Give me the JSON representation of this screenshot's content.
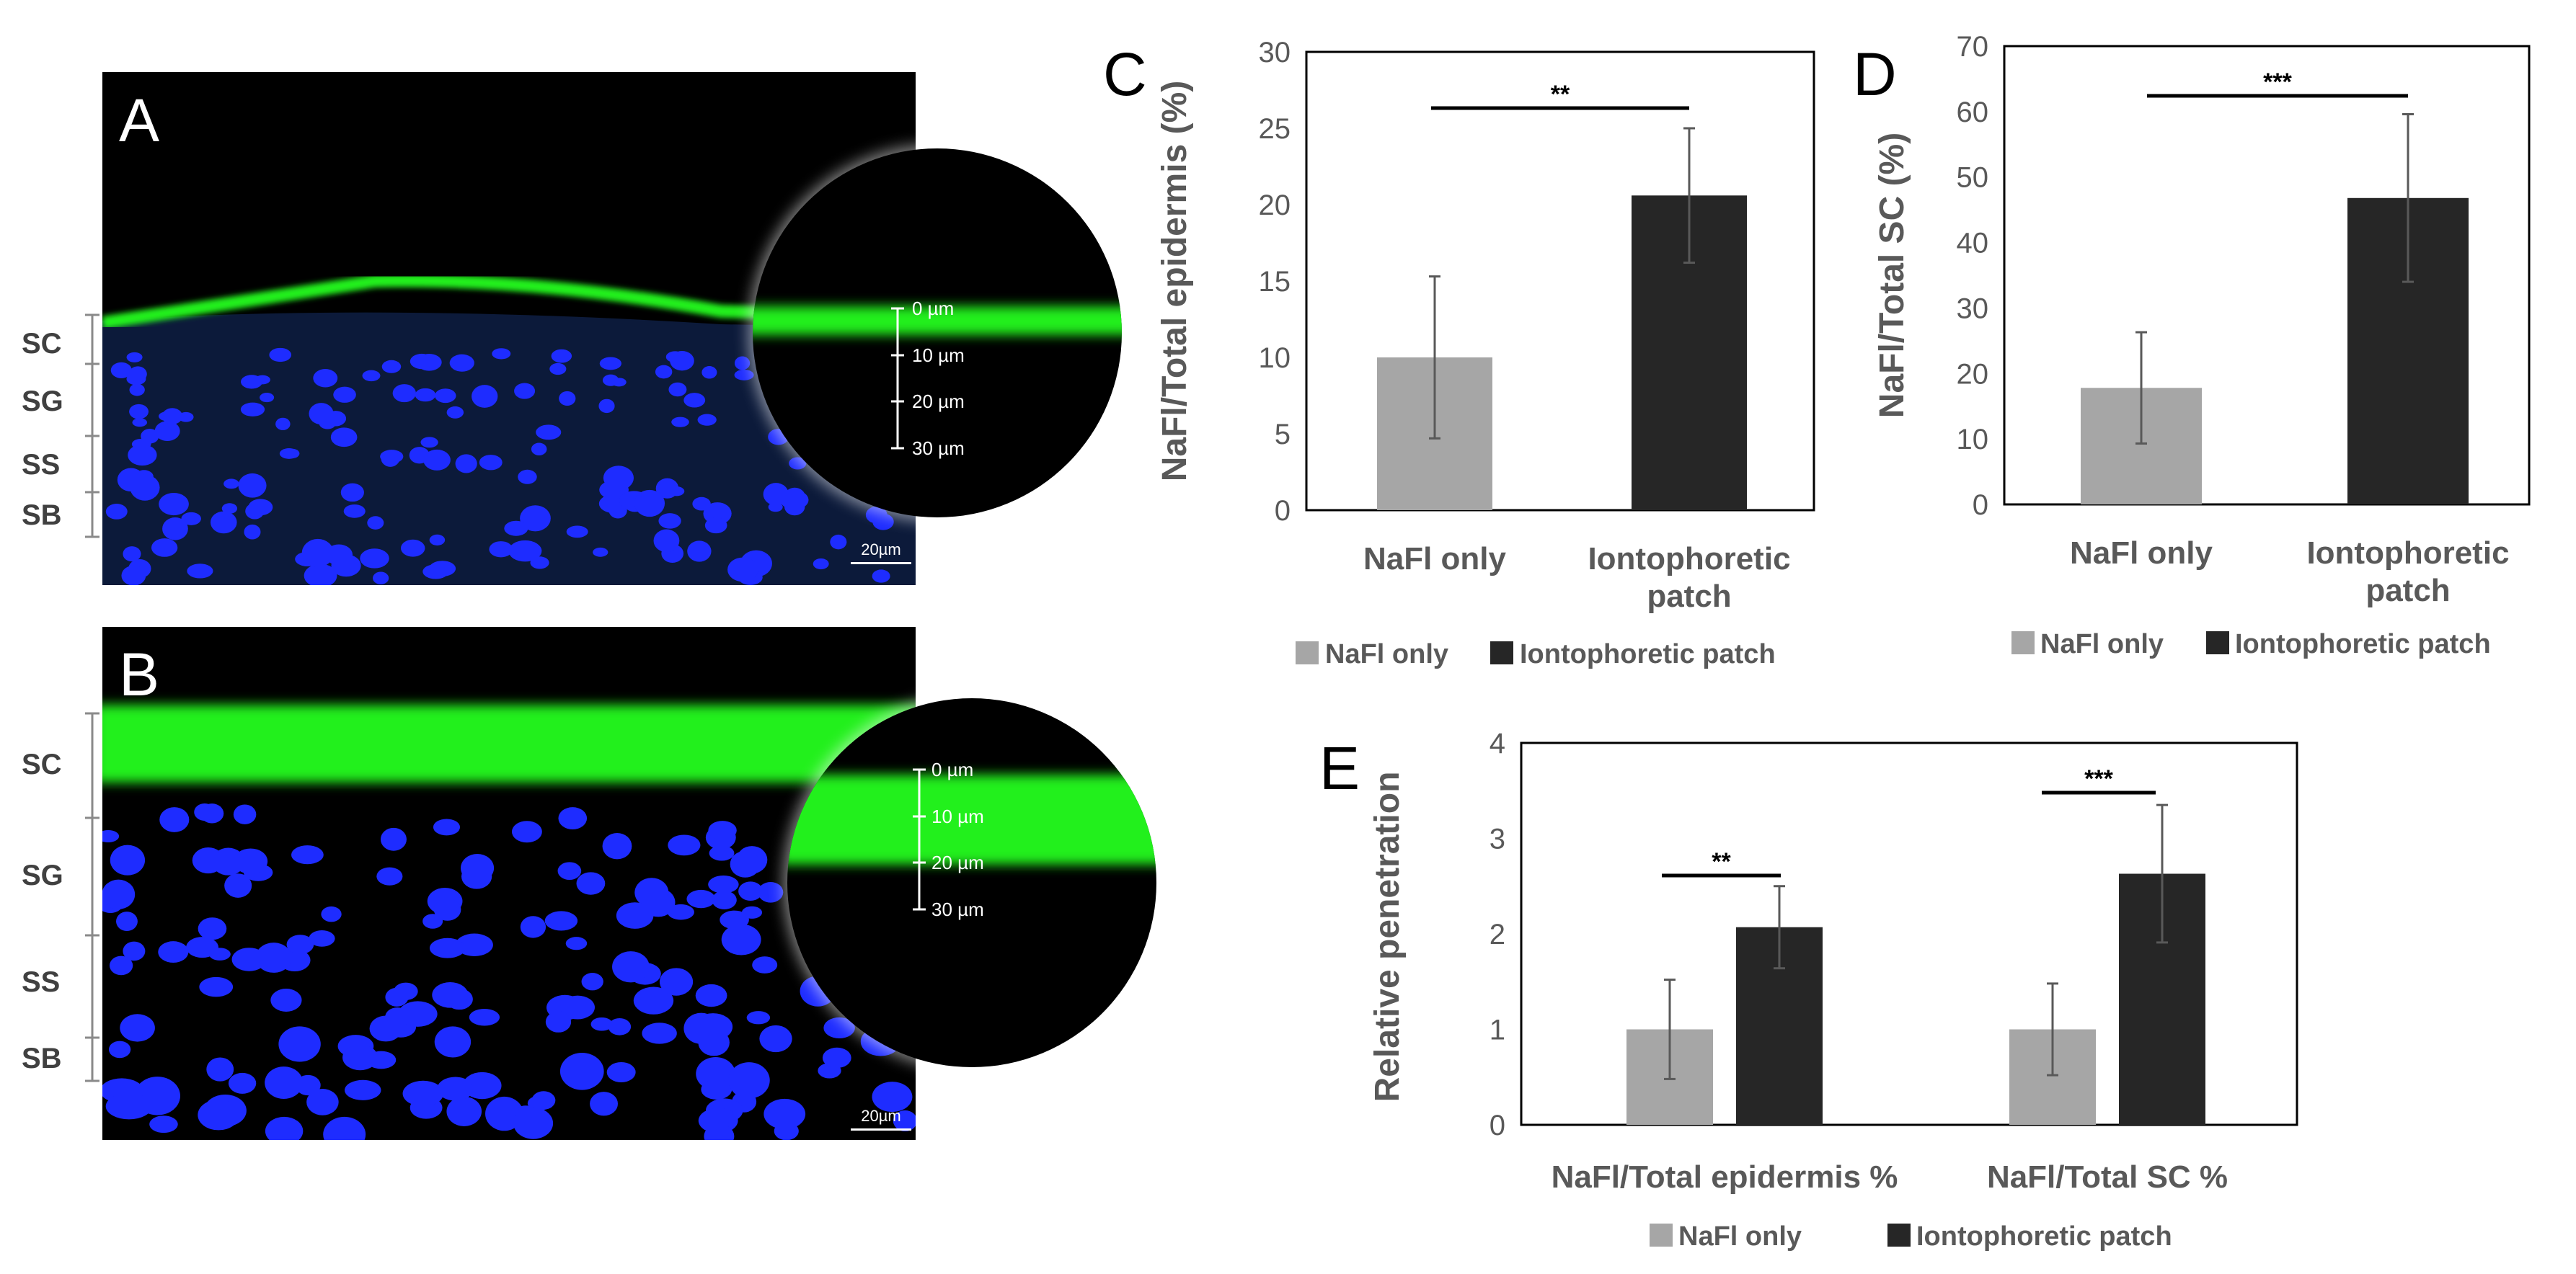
{
  "colors": {
    "nafl_only": "#a6a6a6",
    "iontophoretic": "#262626",
    "fluorescence_green": "#22f01e",
    "nuclei_blue": "#1e2cff"
  },
  "micrographs": [
    {
      "panel": "A",
      "layers": [
        "SC",
        "SG",
        "SS",
        "SB"
      ],
      "scale_bar": "20µm",
      "inset_depths": [
        "0 µm",
        "10 µm",
        "20 µm",
        "30 µm"
      ]
    },
    {
      "panel": "B",
      "layers": [
        "SC",
        "SG",
        "SS",
        "SB"
      ],
      "scale_bar": "20µm",
      "inset_depths": [
        "0 µm",
        "10 µm",
        "20 µm",
        "30 µm"
      ]
    }
  ],
  "chart_data": [
    {
      "panel": "C",
      "type": "bar",
      "categories": [
        "NaFl only",
        "Iontophoretic patch"
      ],
      "values": [
        10,
        20.6
      ],
      "errors": [
        5.3,
        4.4
      ],
      "ylabel": "NaFl/Total epidermis (%)",
      "ylim": [
        0,
        30
      ],
      "yticks": [
        "0",
        "5",
        "10",
        "15",
        "20",
        "25",
        "30"
      ],
      "significance": "**",
      "legend": [
        "NaFl only",
        "Iontophoretic patch"
      ]
    },
    {
      "panel": "D",
      "type": "bar",
      "categories": [
        "NaFl only",
        "Iontophoretic patch"
      ],
      "values": [
        17.8,
        46.8
      ],
      "errors": [
        8.5,
        12.8
      ],
      "ylabel": "NaFl/Total SC (%)",
      "ylim": [
        0,
        70
      ],
      "yticks": [
        "0",
        "10",
        "20",
        "30",
        "40",
        "50",
        "60",
        "70"
      ],
      "significance": "***",
      "legend": [
        "NaFl only",
        "Iontophoretic patch"
      ]
    },
    {
      "panel": "E",
      "type": "bar",
      "categories": [
        "NaFl/Total epidermis %",
        "NaFl/Total SC %"
      ],
      "series": [
        {
          "name": "NaFl only",
          "values": [
            1.0,
            1.0
          ],
          "errors": [
            0.52,
            0.48
          ]
        },
        {
          "name": "Iontophoretic patch",
          "values": [
            2.07,
            2.63
          ],
          "errors": [
            0.43,
            0.72
          ]
        }
      ],
      "ylabel": "Relative penetration",
      "ylim": [
        0,
        4
      ],
      "yticks": [
        "0",
        "1",
        "2",
        "3",
        "4"
      ],
      "significance": [
        "**",
        "***"
      ],
      "legend": [
        "NaFl only",
        "Iontophoretic patch"
      ]
    }
  ]
}
